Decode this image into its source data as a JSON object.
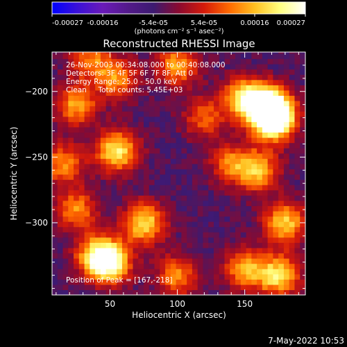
{
  "chart_data": {
    "type": "heatmap",
    "title": "Reconstructed RHESSI Image",
    "xlabel": "Heliocentric X (arcsec)",
    "ylabel": "Heliocentric Y (arcsec)",
    "xlim": [
      7,
      195
    ],
    "ylim": [
      -355,
      -170
    ],
    "x_ticks": [
      50,
      100,
      150
    ],
    "y_ticks": [
      -200,
      -250,
      -300
    ],
    "colorbar": {
      "ticks": [
        "-0.00027",
        "-0.00016",
        "-5.4e-05",
        "5.4e-05",
        "0.00016",
        "0.00027"
      ],
      "range": [
        -0.00027,
        0.00027
      ],
      "unit_label": "(photons cm⁻² s⁻¹ asec⁻²)",
      "colormap": [
        "#0000ff",
        "#3a10d8",
        "#6a1ab8",
        "#531a8a",
        "#3c1a70",
        "#8a0a30",
        "#d41a0a",
        "#ff6a00",
        "#ffc020",
        "#ffff80",
        "#ffffff"
      ]
    },
    "annotations": [
      "26-Nov-2003 00:34:08.000 to 00:40:08.000",
      "Detectors: 3F 4F 5F 6F 7F 8F, Att 0",
      "Energy Range: 25.0 - 50.0 keV",
      "Clean     Total counts: 5.45E+03",
      "Position of Peak = [167,-218]"
    ],
    "peak_position": [
      167,
      -218
    ],
    "sources": [
      {
        "x": 168,
        "y": -212,
        "intensity": 1.0
      },
      {
        "x": 172,
        "y": -222,
        "intensity": 0.9
      },
      {
        "x": 150,
        "y": -205,
        "intensity": 0.75
      },
      {
        "x": 160,
        "y": -260,
        "intensity": 0.6
      },
      {
        "x": 180,
        "y": -300,
        "intensity": 0.65
      },
      {
        "x": 175,
        "y": -340,
        "intensity": 0.7
      },
      {
        "x": 150,
        "y": -335,
        "intensity": 0.55
      },
      {
        "x": 140,
        "y": -255,
        "intensity": 0.45
      },
      {
        "x": 100,
        "y": -180,
        "intensity": 0.55
      },
      {
        "x": 55,
        "y": -190,
        "intensity": 0.5
      },
      {
        "x": 25,
        "y": -210,
        "intensity": 0.55
      },
      {
        "x": 55,
        "y": -245,
        "intensity": 0.75
      },
      {
        "x": 15,
        "y": -255,
        "intensity": 0.5
      },
      {
        "x": 75,
        "y": -300,
        "intensity": 0.7
      },
      {
        "x": 25,
        "y": -290,
        "intensity": 0.5
      },
      {
        "x": 40,
        "y": -325,
        "intensity": 0.6
      },
      {
        "x": 50,
        "y": -330,
        "intensity": 0.8
      },
      {
        "x": 100,
        "y": -340,
        "intensity": 0.5
      },
      {
        "x": 120,
        "y": -220,
        "intensity": 0.4
      },
      {
        "x": 35,
        "y": -175,
        "intensity": 0.45
      }
    ]
  },
  "timestamp": "7-May-2022 10:53"
}
